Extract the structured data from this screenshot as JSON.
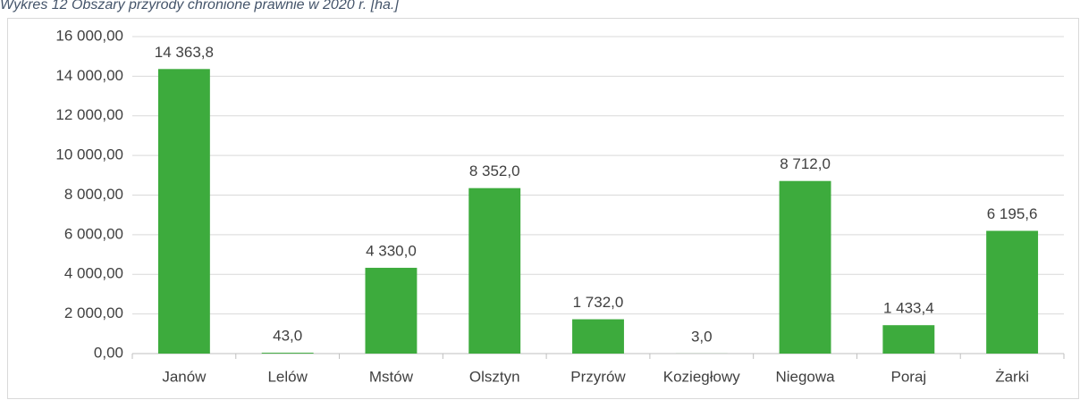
{
  "chart_data": {
    "type": "bar",
    "title": "Wykres 12 Obszary przyrody chronione prawnie w 2020 r. [ha.]",
    "categories": [
      "Janów",
      "Lelów",
      "Mstów",
      "Olsztyn",
      "Przyrów",
      "Koziegłowy",
      "Niegowa",
      "Poraj",
      "Żarki"
    ],
    "values": [
      14363.8,
      43,
      4330,
      8352,
      1732,
      3,
      8712,
      1433.4,
      6195.6
    ],
    "value_labels": [
      "14 363,8",
      "43,0",
      "4 330,0",
      "8 352,0",
      "1 732,0",
      "3,0",
      "8 712,0",
      "1 433,4",
      "6 195,6"
    ],
    "color": "#3dab3d",
    "ylim": [
      0,
      16000
    ],
    "yticks": [
      {
        "value": 0,
        "label": "0,00"
      },
      {
        "value": 2000,
        "label": "2 000,00"
      },
      {
        "value": 4000,
        "label": "4 000,00"
      },
      {
        "value": 6000,
        "label": "6 000,00"
      },
      {
        "value": 8000,
        "label": "8 000,00"
      },
      {
        "value": 10000,
        "label": "10 000,00"
      },
      {
        "value": 12000,
        "label": "12 000,00"
      },
      {
        "value": 14000,
        "label": "14 000,00"
      },
      {
        "value": 16000,
        "label": "16 000,00"
      }
    ],
    "grid": true
  }
}
